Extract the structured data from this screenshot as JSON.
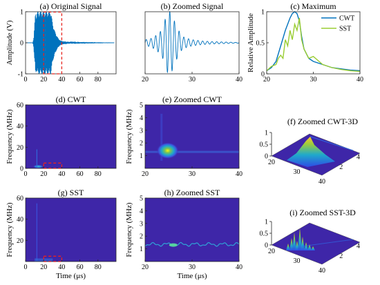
{
  "colors": {
    "signal": "#0072BD",
    "cwt": "#0072BD",
    "sst": "#9ACD32",
    "zoom_box": "#E8231E",
    "tf_background": "#3E26A8"
  },
  "chart_data": [
    {
      "id": "a",
      "type": "line",
      "title": "(a) Original Signal",
      "xlabel": "",
      "ylabel": "Amplitude (V)",
      "xlim": [
        0,
        100
      ],
      "ylim": [
        -1,
        1
      ],
      "xticks": [
        "0",
        "20",
        "40",
        "60",
        "80"
      ],
      "yticks": [
        "-1",
        "0",
        "1"
      ],
      "series": [
        {
          "x": [
            0,
            8,
            9,
            10,
            11,
            12,
            13,
            14,
            15,
            16,
            17,
            18,
            19,
            20,
            22,
            24,
            26,
            28,
            30,
            32,
            34,
            36,
            38,
            40,
            45,
            50,
            60,
            80,
            98
          ],
          "y": [
            0,
            0,
            0.15,
            0.6,
            1,
            0.9,
            1,
            -1,
            1,
            -1,
            1,
            -1,
            1,
            -1,
            1,
            -1,
            1,
            -1,
            0.6,
            -0.4,
            0.25,
            -0.15,
            0.08,
            -0.05,
            0.03,
            0.02,
            0.01,
            0.005,
            0
          ]
        }
      ],
      "zoom_box": {
        "x": [
          20,
          40
        ],
        "y": [
          -1,
          1
        ]
      }
    },
    {
      "id": "b",
      "type": "line",
      "title": "(b) Zoomed Signal",
      "xlabel": "",
      "ylabel": "",
      "xlim": [
        20,
        40
      ],
      "ylim": [
        -1,
        1
      ],
      "xticks": [
        "20",
        "30",
        "40"
      ],
      "series": [
        {
          "x": [
            20,
            21,
            22,
            22.8,
            23.5,
            24,
            24.5,
            25,
            25.5,
            26,
            26.5,
            27,
            27.5,
            28,
            29,
            30,
            31,
            32,
            34,
            36,
            38,
            40
          ],
          "y": [
            0.1,
            -0.12,
            0.2,
            -0.3,
            0.4,
            -0.6,
            0.9,
            -1,
            1,
            -0.8,
            0.6,
            -0.45,
            0.3,
            -0.2,
            0.14,
            -0.1,
            0.08,
            -0.06,
            0.04,
            -0.03,
            0.02,
            0.01
          ]
        }
      ]
    },
    {
      "id": "c",
      "type": "line",
      "title": "(c) Maximum",
      "xlabel": "",
      "ylabel": "Relative Amplitude",
      "xlim": [
        20,
        40
      ],
      "ylim": [
        0,
        1
      ],
      "xticks": [
        "20",
        "30",
        "40"
      ],
      "yticks": [
        "0",
        "0.5",
        "1"
      ],
      "legend": "top-right",
      "series": [
        {
          "name": "CWT",
          "x": [
            20,
            21,
            22,
            23,
            24,
            25,
            25.5,
            26,
            26.5,
            27,
            27.5,
            28,
            29,
            30,
            32,
            34,
            36,
            38,
            40
          ],
          "y": [
            0.05,
            0.1,
            0.2,
            0.45,
            0.7,
            0.9,
            0.97,
            1,
            0.97,
            0.85,
            0.6,
            0.4,
            0.25,
            0.2,
            0.15,
            0.1,
            0.08,
            0.06,
            0.05
          ]
        },
        {
          "name": "SST",
          "x": [
            20,
            21,
            22,
            22.5,
            23,
            23.5,
            24,
            24.5,
            25,
            25.5,
            26,
            26.5,
            27,
            27.5,
            28,
            29,
            30,
            32,
            34,
            36,
            38,
            40
          ],
          "y": [
            0.05,
            0.12,
            0.15,
            0.25,
            0.3,
            0.25,
            0.55,
            0.45,
            0.7,
            0.55,
            0.8,
            0.7,
            0.9,
            0.55,
            0.4,
            0.25,
            0.28,
            0.15,
            0.1,
            0.07,
            0.05,
            0.04
          ]
        }
      ]
    },
    {
      "id": "d",
      "type": "heatmap",
      "title": "(d) CWT",
      "xlabel": "",
      "ylabel": "Frequency (MHz)",
      "xlim": [
        0,
        100
      ],
      "ylim": [
        0,
        60
      ],
      "xticks": [
        "0",
        "20",
        "40",
        "60",
        "80"
      ],
      "yticks": [
        "0",
        "20",
        "40",
        "60"
      ],
      "zoom_box": {
        "x": [
          20,
          40
        ],
        "y": [
          0,
          5
        ]
      }
    },
    {
      "id": "e",
      "type": "heatmap",
      "title": "(e) Zoomed CWT",
      "xlabel": "",
      "ylabel": "Frequency (MHz)",
      "xlim": [
        20,
        40
      ],
      "ylim": [
        0,
        5
      ],
      "xticks": [
        "20",
        "30",
        "40"
      ],
      "yticks": [
        "1",
        "2",
        "3",
        "4",
        "5"
      ]
    },
    {
      "id": "f",
      "type": "heatmap",
      "title": "(f) Zoomed CWT-3D",
      "xlabel": "",
      "ylabel": "",
      "xticks": [
        "20",
        "30",
        "40"
      ],
      "yticks": [
        "2",
        "4"
      ],
      "zticks": [
        "0",
        "0.5",
        "1"
      ]
    },
    {
      "id": "g",
      "type": "heatmap",
      "title": "(g) SST",
      "xlabel": "Time (μs)",
      "ylabel": "Frequency (MHz)",
      "xlim": [
        0,
        100
      ],
      "ylim": [
        0,
        60
      ],
      "xticks": [
        "0",
        "20",
        "40",
        "60",
        "80"
      ],
      "yticks": [
        "20",
        "40",
        "60"
      ],
      "zoom_box": {
        "x": [
          20,
          40
        ],
        "y": [
          0,
          5
        ]
      }
    },
    {
      "id": "h",
      "type": "heatmap",
      "title": "(h) Zoomed SST",
      "xlabel": "Time (μs)",
      "ylabel": "Frequency (MHz)",
      "xlim": [
        20,
        40
      ],
      "ylim": [
        0,
        5
      ],
      "xticks": [
        "20",
        "30",
        "40"
      ],
      "yticks": [
        "1",
        "2",
        "3",
        "4",
        "5"
      ]
    },
    {
      "id": "i",
      "type": "heatmap",
      "title": "(i) Zoomed SST-3D",
      "xlabel": "",
      "ylabel": "",
      "xticks": [
        "20",
        "30",
        "40"
      ],
      "yticks": [
        "2",
        "4"
      ],
      "zticks": [
        "0",
        "0.5",
        "1"
      ]
    }
  ]
}
